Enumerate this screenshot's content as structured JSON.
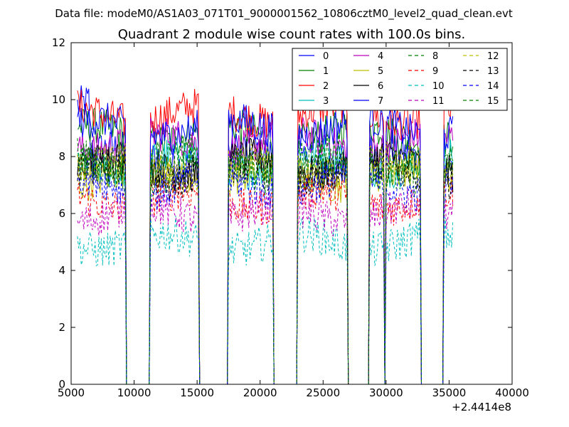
{
  "chart_data": {
    "type": "line",
    "supertitle": "Data file: modeM0/AS1A03_071T01_9000001562_10806cztM0_level2_quad_clean.evt",
    "title": "Quadrant 2 module wise count rates with 100.0s bins.",
    "xlabel": "",
    "ylabel": "",
    "x_offset_label": "+2.4414e8",
    "xlim": [
      5000,
      40000
    ],
    "ylim": [
      0,
      12
    ],
    "xticks": [
      "5000",
      "10000",
      "15000",
      "20000",
      "25000",
      "30000",
      "35000",
      "40000"
    ],
    "yticks": [
      "0",
      "2",
      "4",
      "6",
      "8",
      "10",
      "12"
    ],
    "bin_seconds": 100,
    "observation_segments": [
      [
        5500,
        9300
      ],
      [
        11300,
        15100
      ],
      [
        17500,
        21000
      ],
      [
        23000,
        23800
      ],
      [
        23800,
        26900
      ],
      [
        28700,
        29800
      ],
      [
        30000,
        32700
      ],
      [
        34600,
        35300
      ]
    ],
    "legend_position": "top-right",
    "series": [
      {
        "name": "0",
        "style": "solid",
        "color": "#0000ff",
        "level": 8.0
      },
      {
        "name": "1",
        "style": "solid",
        "color": "#008000",
        "level": 8.8
      },
      {
        "name": "2",
        "style": "solid",
        "color": "#ff0000",
        "level": 9.5
      },
      {
        "name": "3",
        "style": "solid",
        "color": "#00bfbf",
        "level": 7.8
      },
      {
        "name": "4",
        "style": "solid",
        "color": "#bf00bf",
        "level": 8.5
      },
      {
        "name": "5",
        "style": "solid",
        "color": "#bfbf00",
        "level": 7.3
      },
      {
        "name": "6",
        "style": "solid",
        "color": "#000000",
        "level": 7.7
      },
      {
        "name": "7",
        "style": "solid",
        "color": "#0000ff",
        "level": 9.0
      },
      {
        "name": "8",
        "style": "dashed",
        "color": "#008000",
        "level": 7.5
      },
      {
        "name": "9",
        "style": "dashed",
        "color": "#ff0000",
        "level": 6.5
      },
      {
        "name": "10",
        "style": "dashed",
        "color": "#00bfbf",
        "level": 5.0
      },
      {
        "name": "11",
        "style": "dashed",
        "color": "#bf00bf",
        "level": 6.0
      },
      {
        "name": "12",
        "style": "dashed",
        "color": "#bfbf00",
        "level": 7.6
      },
      {
        "name": "13",
        "style": "dashed",
        "color": "#000000",
        "level": 7.4
      },
      {
        "name": "14",
        "style": "dashed",
        "color": "#0000ff",
        "level": 7.0
      },
      {
        "name": "15",
        "style": "dashed",
        "color": "#008000",
        "level": 7.9
      }
    ]
  }
}
